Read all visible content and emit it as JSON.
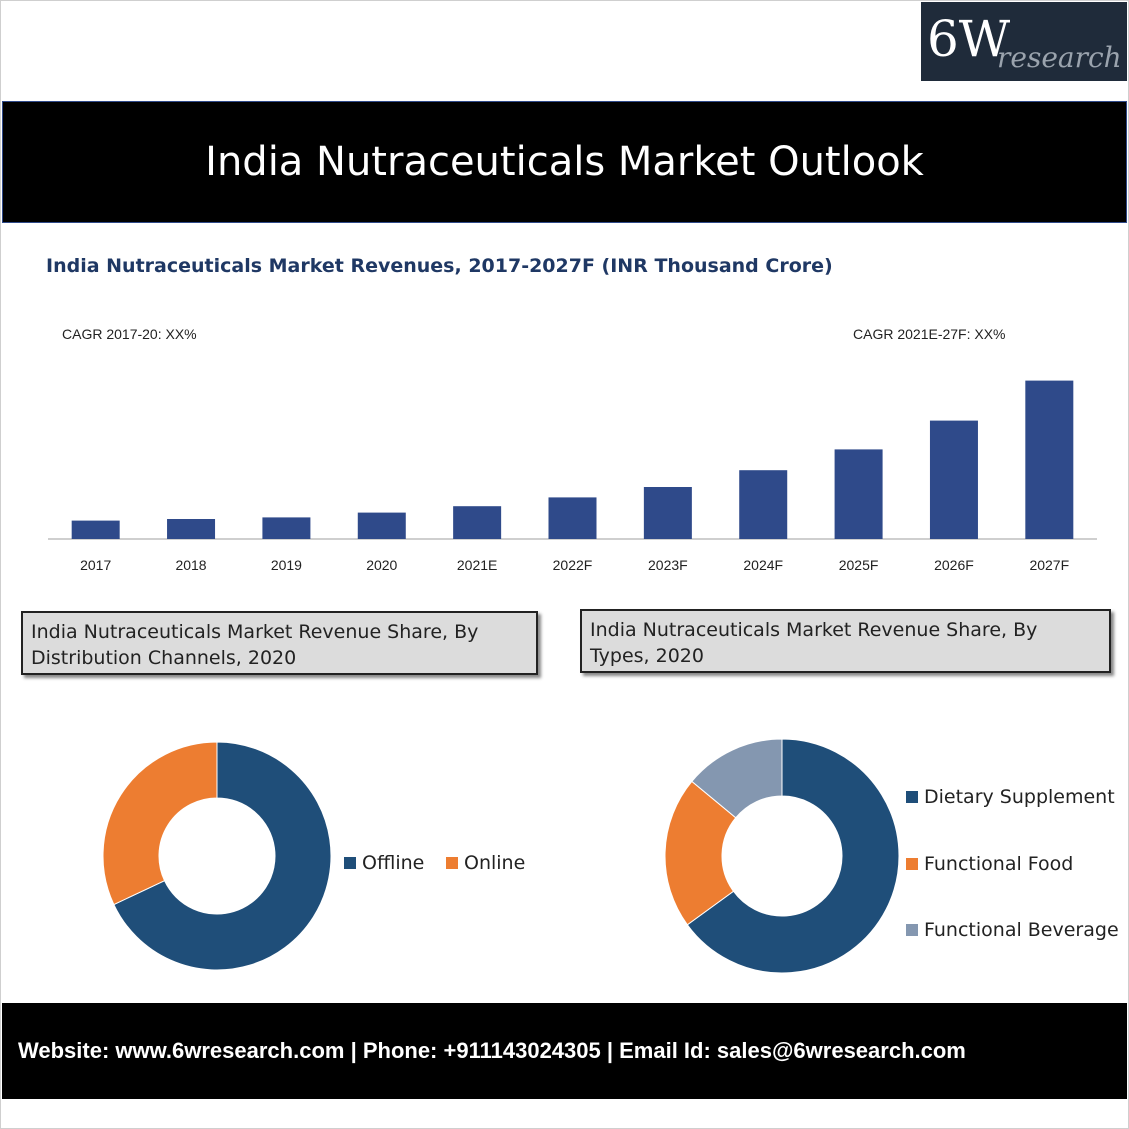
{
  "logo": {
    "main": "6W",
    "sub": "research"
  },
  "banner": {
    "title": "India Nutraceuticals Market Outlook"
  },
  "chart_data": [
    {
      "type": "bar",
      "title": "India Nutraceuticals Market Revenues, 2017-2027F (INR Thousand Crore)",
      "annotations": [
        "CAGR 2017-20: XX%",
        "CAGR 2021E-27F: XX%"
      ],
      "categories": [
        "2017",
        "2018",
        "2019",
        "2020",
        "2021E",
        "2022F",
        "2023F",
        "2024F",
        "2025F",
        "2026F",
        "2027F"
      ],
      "values": [
        11.5,
        12.5,
        13.5,
        16.5,
        20.5,
        26,
        32.5,
        43,
        56,
        74,
        99
      ],
      "ylim": [
        0,
        100
      ],
      "color": "#2f4a8a",
      "grid": false
    },
    {
      "type": "pie",
      "style": "donut",
      "title": "India Nutraceuticals Market Revenue Share, By Distribution Channels, 2020",
      "labels": [
        "Offline",
        "Online"
      ],
      "values": [
        68,
        32
      ],
      "colors": [
        "#1f4e79",
        "#ed7d31"
      ],
      "legend": "right"
    },
    {
      "type": "pie",
      "style": "donut",
      "title": "India Nutraceuticals Market Revenue Share, By Types, 2020",
      "labels": [
        "Dietary Supplement",
        "Functional Food",
        "Functional Beverage"
      ],
      "values": [
        65,
        21,
        14
      ],
      "colors": [
        "#1f4e79",
        "#ed7d31",
        "#8497b0"
      ],
      "legend": "right"
    }
  ],
  "footer": {
    "text": "Website: www.6wresearch.com | Phone: +911143024305 | Email Id: sales@6wresearch.com"
  }
}
